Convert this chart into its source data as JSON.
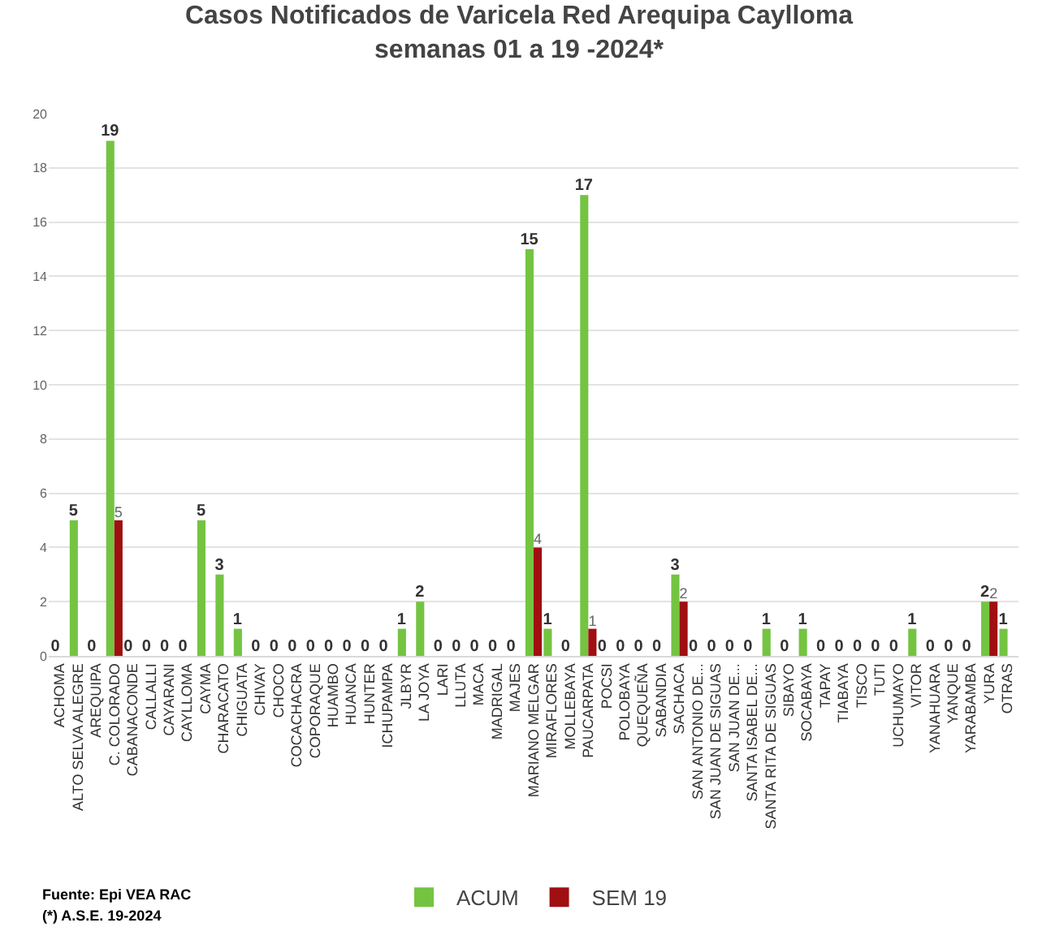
{
  "chart_data": {
    "type": "bar",
    "title": "Casos Notificados de Varicela Red Arequipa Caylloma",
    "subtitle": "semanas 01 a 19 -2024*",
    "categories": [
      "ACHOMA",
      "ALTO SELVA ALEGRE",
      "AREQUIPA",
      "C. COLORADO",
      "CABANACONDE",
      "CALLALLI",
      "CAYARANI",
      "CAYLLOMA",
      "CAYMA",
      "CHARACATO",
      "CHIGUATA",
      "CHIVAY",
      "CHOCO",
      "COCACHACRA",
      "COPORAQUE",
      "HUAMBO",
      "HUANCA",
      "HUNTER",
      "ICHUPAMPA",
      "JLBYR",
      "LA JOYA",
      "LARI",
      "LLUTA",
      "MACA",
      "MADRIGAL",
      "MAJES",
      "MARIANO MELGAR",
      "MIRAFLORES",
      "MOLLEBAYA",
      "PAUCARPATA",
      "POCSI",
      "POLOBAYA",
      "QUEQUEÑA",
      "SABANDIA",
      "SACHACA",
      "SAN ANTONIO DE...",
      "SAN JUAN DE SIGUAS",
      "SAN JUAN DE...",
      "SANTA ISABEL DE...",
      "SANTA RITA DE SIGUAS",
      "SIBAYO",
      "SOCABAYA",
      "TAPAY",
      "TIABAYA",
      "TISCO",
      "TUTI",
      "UCHUMAYO",
      "VITOR",
      "YANAHUARA",
      "YANQUE",
      "YARABAMBA",
      "YURA",
      "OTRAS"
    ],
    "series": [
      {
        "name": "ACUM",
        "color": "#74c442",
        "values": [
          0,
          5,
          0,
          19,
          0,
          0,
          0,
          0,
          5,
          3,
          1,
          0,
          0,
          0,
          0,
          0,
          0,
          0,
          0,
          1,
          2,
          0,
          0,
          0,
          0,
          0,
          15,
          1,
          0,
          17,
          0,
          0,
          0,
          0,
          3,
          0,
          0,
          0,
          0,
          1,
          0,
          1,
          0,
          0,
          0,
          0,
          0,
          1,
          0,
          0,
          0,
          2,
          1
        ],
        "value_labels": [
          "0",
          "5",
          "0",
          "19",
          "0",
          "0",
          "0",
          "0",
          "5",
          "3",
          "1",
          "0",
          "0",
          "0",
          "0",
          "0",
          "0",
          "0",
          "0",
          "1",
          "2",
          "0",
          "0",
          "0",
          "0",
          "0",
          "15",
          "1",
          "0",
          "17",
          "0",
          "0",
          "0",
          "0",
          "3",
          "0",
          "0",
          "0",
          "0",
          "1",
          "0",
          "1",
          "0",
          "0",
          "0",
          "0",
          "0",
          "1",
          "0",
          "0",
          "0",
          "2",
          "1"
        ]
      },
      {
        "name": "SEM 19",
        "color": "#a00f12",
        "values": [
          0,
          0,
          0,
          5,
          0,
          0,
          0,
          0,
          0,
          0,
          0,
          0,
          0,
          0,
          0,
          0,
          0,
          0,
          0,
          0,
          0,
          0,
          0,
          0,
          0,
          0,
          4,
          0,
          0,
          1,
          0,
          0,
          0,
          0,
          2,
          0,
          0,
          0,
          0,
          0,
          0,
          0,
          0,
          0,
          0,
          0,
          0,
          0,
          0,
          0,
          0,
          2,
          0
        ],
        "value_labels": [
          null,
          null,
          null,
          "5",
          null,
          null,
          null,
          null,
          null,
          null,
          null,
          null,
          null,
          null,
          null,
          null,
          null,
          null,
          null,
          null,
          null,
          null,
          null,
          null,
          null,
          null,
          "4",
          null,
          null,
          "1",
          null,
          null,
          null,
          null,
          "2",
          null,
          null,
          null,
          null,
          null,
          null,
          null,
          null,
          null,
          null,
          null,
          null,
          null,
          null,
          null,
          null,
          "2",
          null
        ]
      }
    ],
    "ylim": [
      0,
      20
    ],
    "yticks": [
      0,
      2,
      4,
      6,
      8,
      10,
      12,
      14,
      16,
      18,
      20
    ],
    "grid": "y",
    "legend": "bottom",
    "annotations": [
      "Fuente: Epi VEA RAC",
      "(*) A.S.E. 19-2024"
    ]
  }
}
